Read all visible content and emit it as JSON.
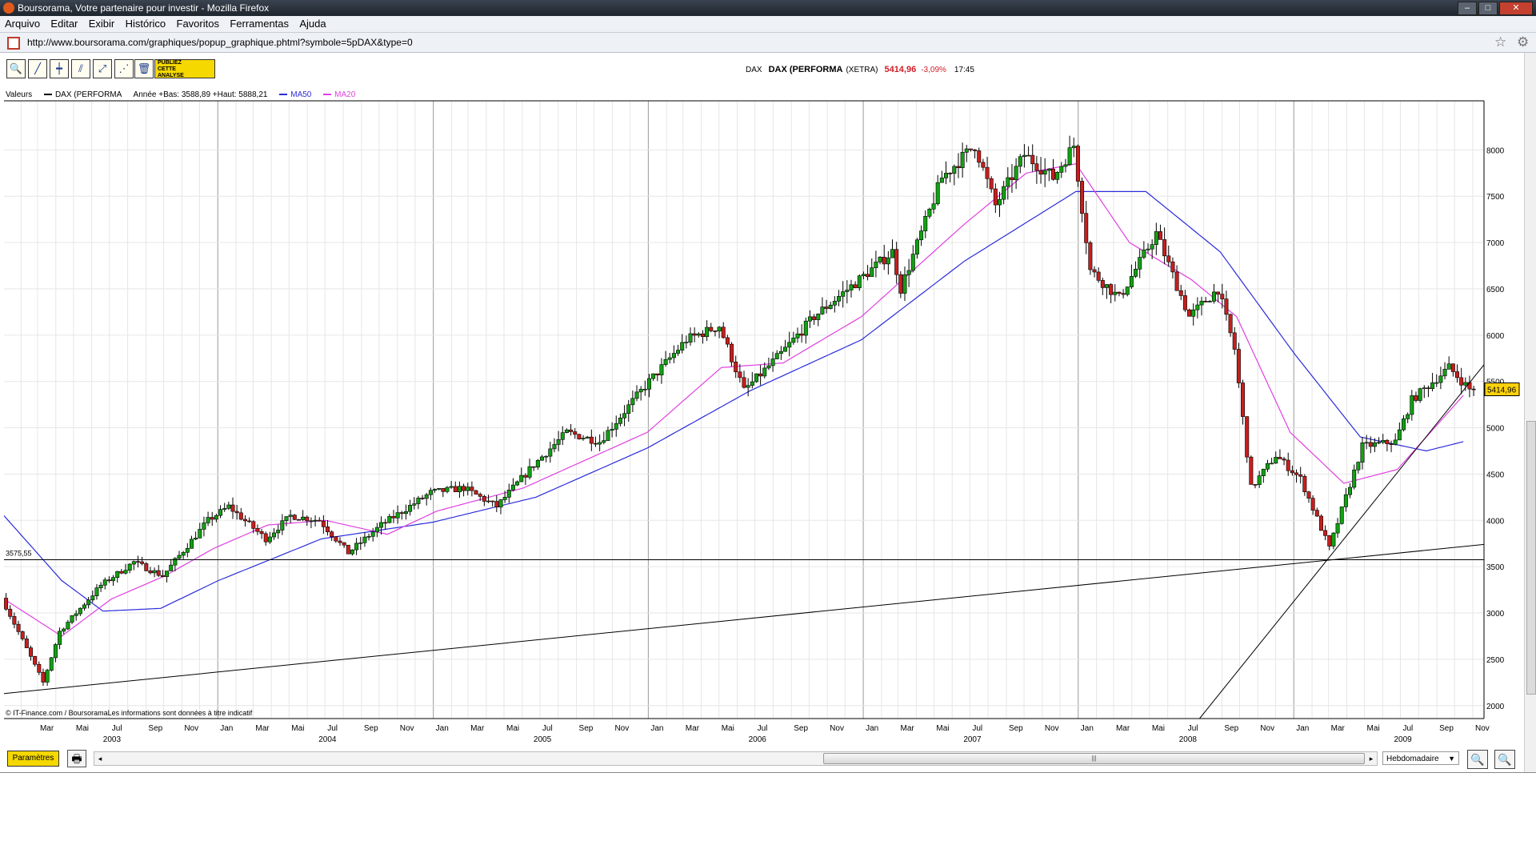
{
  "window": {
    "title": "Boursorama, Votre partenaire pour investir - Mozilla Firefox",
    "minimize": "–",
    "maximize": "□",
    "close": "✕"
  },
  "menu": [
    "Arquivo",
    "Editar",
    "Exibir",
    "Histórico",
    "Favoritos",
    "Ferramentas",
    "Ajuda"
  ],
  "address": {
    "url": "http://www.boursorama.com/graphiques/popup_graphique.phtml?symbole=5pDAX&type=0",
    "star": "☆",
    "gear": "⚙"
  },
  "toolbar": {
    "tools": [
      {
        "name": "zoom-tool-icon",
        "glyph": "🔍"
      },
      {
        "name": "trendline-tool-icon",
        "glyph": "╱"
      },
      {
        "name": "horizontal-line-tool-icon",
        "glyph": "┿"
      },
      {
        "name": "channel-tool-icon",
        "glyph": "⫽"
      },
      {
        "name": "fibonacci-tool-icon",
        "glyph": "⤢"
      },
      {
        "name": "fan-tool-icon",
        "glyph": "⋰"
      },
      {
        "name": "trash-icon",
        "glyph": "🗑"
      }
    ],
    "publiez": [
      "PUBLIEZ",
      "CETTE",
      "ANALYSE"
    ]
  },
  "quote": {
    "symbol": "DAX",
    "name": "DAX (PERFORMA",
    "exchange": "(XETRA)",
    "price": "5414,96",
    "change": "-3,09%",
    "time": "17:45"
  },
  "legend": {
    "prefix": "Valeurs",
    "main_series": "DAX (PERFORMA",
    "range_text": "Année +Bas: 3588,89 +Haut: 5888,21",
    "ma50": "MA50",
    "ma20": "MA20"
  },
  "footer": {
    "credit": "© IT-Finance.com / BoursoramaLes informations sont données à titre indicatif",
    "parametres": "Paramètres",
    "printer": "🖶",
    "interval": "Hebdomadaire",
    "select_arrow": "▼",
    "zoom_out": "🔍−",
    "zoom_in": "🔍+",
    "scroll_left": "◂",
    "scroll_right": "▸",
    "scroll_grip": "|||"
  },
  "chart_data": {
    "type": "candlestick",
    "interval": "Hebdomadaire",
    "y_ticks": [
      2000,
      2500,
      3000,
      3500,
      4000,
      4500,
      5000,
      5500,
      6000,
      6500,
      7000,
      7500,
      8000
    ],
    "y_tick_labels": [
      "2000",
      "2500",
      "3000",
      "3500",
      "4000",
      "4500",
      "5000",
      "5500",
      "6000",
      "6500",
      "7000",
      "7500",
      "8000"
    ],
    "ylim": [
      1860,
      8530
    ],
    "x_start": "2003-01-03",
    "x_end": "2009-11-20",
    "month_labels": [
      "Jan",
      "Mar",
      "Mai",
      "Jul",
      "Sep",
      "Nov"
    ],
    "years": [
      "2003",
      "2004",
      "2005",
      "2006",
      "2007",
      "2008",
      "2009"
    ],
    "price_series_name": "DAX (PERFORMA",
    "price_anchors": [
      [
        "2003-01-03",
        3160
      ],
      [
        "2003-03-14",
        2250
      ],
      [
        "2003-04-11",
        2800
      ],
      [
        "2003-06-20",
        3300
      ],
      [
        "2003-08-15",
        3550
      ],
      [
        "2003-10-03",
        3400
      ],
      [
        "2003-12-19",
        4000
      ],
      [
        "2004-01-23",
        4150
      ],
      [
        "2004-03-26",
        3800
      ],
      [
        "2004-05-07",
        4050
      ],
      [
        "2004-06-25",
        4000
      ],
      [
        "2004-08-13",
        3650
      ],
      [
        "2004-10-08",
        3950
      ],
      [
        "2004-12-31",
        4300
      ],
      [
        "2005-02-25",
        4350
      ],
      [
        "2005-04-22",
        4150
      ],
      [
        "2005-06-24",
        4600
      ],
      [
        "2005-08-19",
        4950
      ],
      [
        "2005-10-14",
        4850
      ],
      [
        "2005-12-30",
        5450
      ],
      [
        "2006-03-10",
        5950
      ],
      [
        "2006-05-05",
        6100
      ],
      [
        "2006-06-16",
        5400
      ],
      [
        "2006-08-18",
        5800
      ],
      [
        "2006-10-13",
        6200
      ],
      [
        "2006-12-29",
        6600
      ],
      [
        "2007-02-23",
        6900
      ],
      [
        "2007-03-09",
        6500
      ],
      [
        "2007-05-18",
        7700
      ],
      [
        "2007-07-13",
        8050
      ],
      [
        "2007-08-17",
        7400
      ],
      [
        "2007-10-05",
        7950
      ],
      [
        "2007-11-23",
        7700
      ],
      [
        "2007-12-28",
        8050
      ],
      [
        "2008-01-25",
        6700
      ],
      [
        "2008-03-14",
        6400
      ],
      [
        "2008-05-16",
        7100
      ],
      [
        "2008-07-11",
        6200
      ],
      [
        "2008-08-29",
        6500
      ],
      [
        "2008-09-26",
        5850
      ],
      [
        "2008-10-24",
        4350
      ],
      [
        "2008-12-05",
        4700
      ],
      [
        "2009-01-16",
        4450
      ],
      [
        "2009-03-06",
        3700
      ],
      [
        "2009-05-01",
        4800
      ],
      [
        "2009-06-26",
        4850
      ],
      [
        "2009-07-24",
        5300
      ],
      [
        "2009-09-25",
        5650
      ],
      [
        "2009-10-30",
        5414.96
      ]
    ],
    "ma50_anchors": [
      [
        "2003-01-03",
        4050
      ],
      [
        "2003-04-11",
        3350
      ],
      [
        "2003-06-20",
        3020
      ],
      [
        "2003-09-26",
        3050
      ],
      [
        "2004-01-02",
        3350
      ],
      [
        "2004-06-25",
        3800
      ],
      [
        "2004-12-31",
        3980
      ],
      [
        "2005-06-24",
        4250
      ],
      [
        "2005-12-30",
        4780
      ],
      [
        "2006-06-23",
        5400
      ],
      [
        "2006-12-29",
        5950
      ],
      [
        "2007-06-22",
        6800
      ],
      [
        "2007-12-28",
        7550
      ],
      [
        "2008-04-25",
        7550
      ],
      [
        "2008-08-29",
        6900
      ],
      [
        "2009-01-02",
        5800
      ],
      [
        "2009-04-24",
        4900
      ],
      [
        "2009-08-14",
        4750
      ],
      [
        "2009-10-16",
        4850
      ]
    ],
    "ma20_anchors": [
      [
        "2003-01-03",
        3150
      ],
      [
        "2003-04-11",
        2750
      ],
      [
        "2003-07-04",
        3150
      ],
      [
        "2003-10-03",
        3400
      ],
      [
        "2003-12-26",
        3700
      ],
      [
        "2004-03-26",
        3950
      ],
      [
        "2004-07-02",
        4000
      ],
      [
        "2004-10-15",
        3850
      ],
      [
        "2005-01-07",
        4100
      ],
      [
        "2005-06-03",
        4350
      ],
      [
        "2005-12-30",
        4950
      ],
      [
        "2006-05-05",
        5650
      ],
      [
        "2006-08-18",
        5700
      ],
      [
        "2006-12-29",
        6200
      ],
      [
        "2007-06-22",
        7200
      ],
      [
        "2007-10-05",
        7750
      ],
      [
        "2007-12-28",
        7850
      ],
      [
        "2008-03-28",
        7000
      ],
      [
        "2008-07-11",
        6600
      ],
      [
        "2008-09-26",
        6200
      ],
      [
        "2008-12-26",
        4950
      ],
      [
        "2009-03-27",
        4400
      ],
      [
        "2009-06-26",
        4550
      ],
      [
        "2009-10-16",
        5350
      ]
    ],
    "ma50_name": "MA50",
    "ma20_name": "MA20",
    "colors": {
      "up": "#12a012",
      "down": "#c81e1e",
      "ma50": "#2b2bdc",
      "ma20": "#e040e0",
      "grid_minor": "#e6e6e6",
      "grid_year": "#9a9a9a",
      "line": "#000000",
      "badge": "#ffd20a"
    },
    "horizontal_line": {
      "label": "3575,55",
      "value": 3575.55
    },
    "trendlines": [
      {
        "from": [
          "2003-01-03",
          2130
        ],
        "to": [
          "2009-11-20",
          3740
        ]
      },
      {
        "from": [
          "2008-07-25",
          1860
        ],
        "to": [
          "2009-11-20",
          5680
        ]
      }
    ],
    "last_price_badge": "5414,96"
  }
}
